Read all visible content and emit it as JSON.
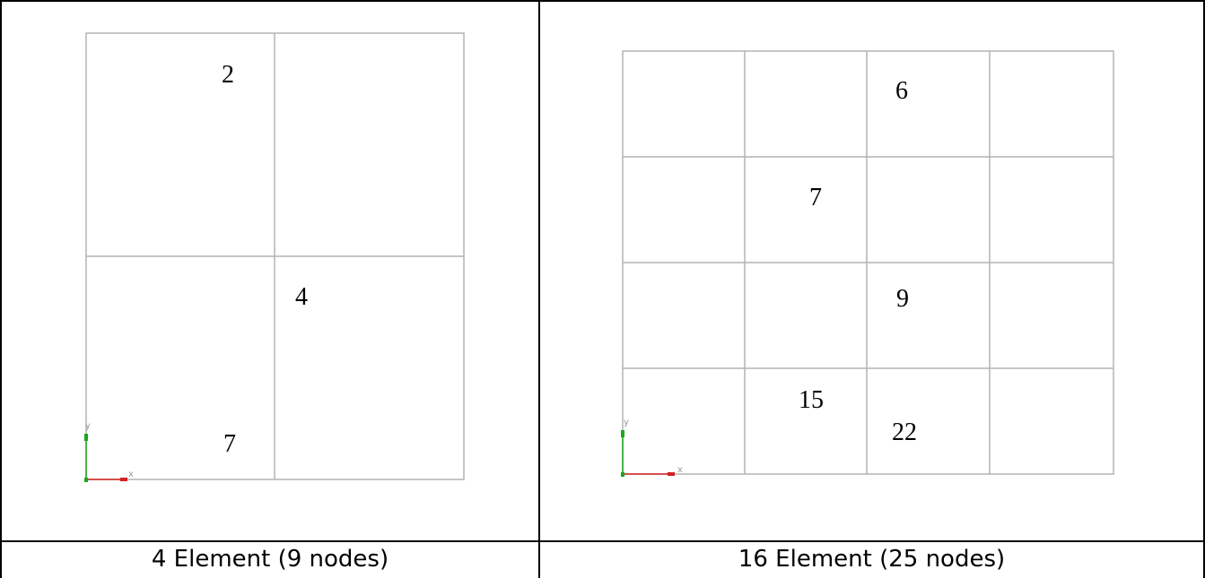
{
  "panels": [
    {
      "caption": "4 Element (9 nodes)",
      "grid_divisions": 2,
      "labels": [
        "2",
        "4",
        "7"
      ],
      "axis": {
        "x": "x",
        "y": "y"
      }
    },
    {
      "caption": "16 Element (25 nodes)",
      "grid_divisions": 4,
      "labels": [
        "6",
        "7",
        "9",
        "15",
        "22"
      ],
      "axis": {
        "x": "x",
        "y": "y"
      }
    }
  ],
  "colors": {
    "grid": "#b4b4b4",
    "frame": "#000000",
    "x_axis": "#d42020",
    "y_axis": "#1aa81a"
  }
}
